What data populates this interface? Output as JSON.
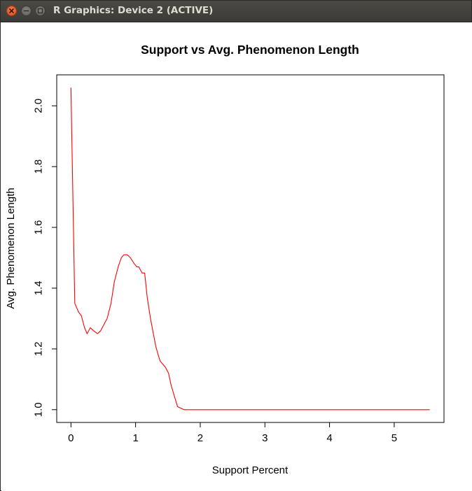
{
  "window": {
    "title": "R Graphics: Device 2 (ACTIVE)",
    "controls": [
      "close",
      "minimize",
      "maximize"
    ]
  },
  "chart_data": {
    "type": "line",
    "title": "Support vs Avg. Phenomenon Length",
    "xlabel": "Support Percent",
    "ylabel": "Avg. Phenomenon Length",
    "xlim": [
      -0.22,
      5.77
    ],
    "ylim": [
      0.958,
      2.102
    ],
    "xticks": [
      0,
      1,
      2,
      3,
      4,
      5
    ],
    "xtick_labels": [
      "0",
      "1",
      "2",
      "3",
      "4",
      "5"
    ],
    "yticks": [
      1.0,
      1.2,
      1.4,
      1.6,
      1.8,
      2.0
    ],
    "ytick_labels": [
      "1.0",
      "1.2",
      "1.4",
      "1.6",
      "1.8",
      "2.0"
    ],
    "grid": false,
    "legend": "none",
    "series": [
      {
        "color": "#ff0000",
        "x": [
          0.0,
          0.06,
          0.12,
          0.16,
          0.21,
          0.25,
          0.3,
          0.35,
          0.41,
          0.46,
          0.56,
          0.62,
          0.67,
          0.73,
          0.78,
          0.82,
          0.87,
          0.92,
          0.98,
          1.02,
          1.05,
          1.1,
          1.14,
          1.18,
          1.23,
          1.31,
          1.35,
          1.38,
          1.42,
          1.46,
          1.51,
          1.55,
          1.62,
          1.65,
          1.75,
          2.0,
          3.0,
          4.0,
          5.0,
          5.55
        ],
        "y": [
          2.06,
          1.35,
          1.32,
          1.31,
          1.27,
          1.25,
          1.27,
          1.26,
          1.25,
          1.26,
          1.3,
          1.35,
          1.42,
          1.47,
          1.5,
          1.51,
          1.51,
          1.5,
          1.48,
          1.47,
          1.47,
          1.45,
          1.45,
          1.37,
          1.3,
          1.21,
          1.18,
          1.16,
          1.15,
          1.14,
          1.12,
          1.08,
          1.03,
          1.01,
          1.0,
          1.0,
          1.0,
          1.0,
          1.0,
          1.0
        ]
      }
    ]
  }
}
